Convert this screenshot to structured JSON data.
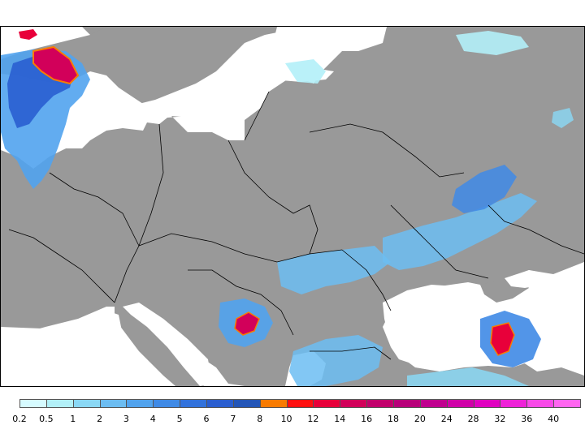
{
  "legend": {
    "labels": [
      "0.2",
      "0.5",
      "1",
      "2",
      "3",
      "4",
      "5",
      "6",
      "7",
      "8",
      "10",
      "12",
      "14",
      "16",
      "18",
      "20",
      "24",
      "28",
      "32",
      "36",
      "40"
    ],
    "colors": [
      "#d6fbff",
      "#b2f0f8",
      "#8ad8f5",
      "#6cbdf2",
      "#51a3ee",
      "#3f8ae6",
      "#3272dc",
      "#2a5ed0",
      "#2456b8",
      "#f97b00",
      "#ff1010",
      "#e8003a",
      "#d2005a",
      "#c2006c",
      "#b8007a",
      "#c0008f",
      "#d000a8",
      "#e000c0",
      "#ee22d8",
      "#f84ae8",
      "#ff66f0"
    ]
  },
  "map": {
    "land_color": "#999999",
    "sea_color": "#ffffff",
    "border_color": "#000000"
  }
}
